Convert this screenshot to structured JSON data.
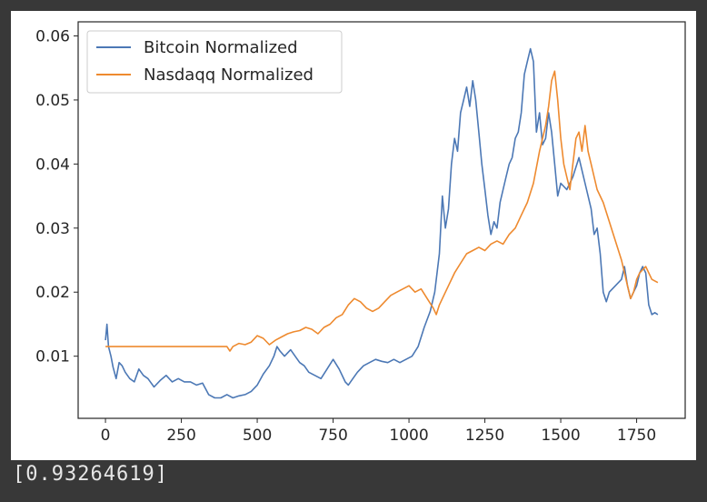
{
  "chart_data": {
    "type": "line",
    "title": "",
    "xlabel": "",
    "ylabel": "",
    "xlim": [
      -90,
      1910
    ],
    "ylim": [
      0.0003,
      0.0622
    ],
    "xticks": [
      0,
      250,
      500,
      750,
      1000,
      1250,
      1500,
      1750
    ],
    "yticks": [
      0.01,
      0.02,
      0.03,
      0.04,
      0.05,
      0.06
    ],
    "ytick_labels": [
      "0.01",
      "0.02",
      "0.03",
      "0.04",
      "0.05",
      "0.06"
    ],
    "grid": false,
    "legend_position": "upper-left",
    "series": [
      {
        "name": "Bitcoin Normalized",
        "color": "#4c78b5",
        "points": [
          [
            0,
            0.0125
          ],
          [
            5,
            0.015
          ],
          [
            10,
            0.0115
          ],
          [
            18,
            0.01
          ],
          [
            25,
            0.0083
          ],
          [
            35,
            0.0065
          ],
          [
            45,
            0.009
          ],
          [
            55,
            0.0085
          ],
          [
            65,
            0.0075
          ],
          [
            80,
            0.0065
          ],
          [
            95,
            0.006
          ],
          [
            110,
            0.008
          ],
          [
            125,
            0.007
          ],
          [
            140,
            0.0065
          ],
          [
            160,
            0.0052
          ],
          [
            180,
            0.0062
          ],
          [
            200,
            0.007
          ],
          [
            220,
            0.006
          ],
          [
            240,
            0.0065
          ],
          [
            260,
            0.006
          ],
          [
            280,
            0.006
          ],
          [
            300,
            0.0055
          ],
          [
            320,
            0.0058
          ],
          [
            340,
            0.004
          ],
          [
            360,
            0.0035
          ],
          [
            380,
            0.0035
          ],
          [
            400,
            0.004
          ],
          [
            420,
            0.0035
          ],
          [
            440,
            0.0038
          ],
          [
            460,
            0.004
          ],
          [
            480,
            0.0045
          ],
          [
            500,
            0.0055
          ],
          [
            520,
            0.0072
          ],
          [
            540,
            0.0085
          ],
          [
            555,
            0.01
          ],
          [
            565,
            0.0115
          ],
          [
            575,
            0.0108
          ],
          [
            590,
            0.01
          ],
          [
            610,
            0.011
          ],
          [
            625,
            0.01
          ],
          [
            640,
            0.009
          ],
          [
            655,
            0.0085
          ],
          [
            670,
            0.0075
          ],
          [
            690,
            0.007
          ],
          [
            710,
            0.0065
          ],
          [
            730,
            0.008
          ],
          [
            750,
            0.0095
          ],
          [
            770,
            0.008
          ],
          [
            790,
            0.006
          ],
          [
            800,
            0.0055
          ],
          [
            815,
            0.0065
          ],
          [
            830,
            0.0075
          ],
          [
            850,
            0.0085
          ],
          [
            870,
            0.009
          ],
          [
            890,
            0.0095
          ],
          [
            910,
            0.0092
          ],
          [
            930,
            0.009
          ],
          [
            950,
            0.0095
          ],
          [
            970,
            0.009
          ],
          [
            990,
            0.0095
          ],
          [
            1010,
            0.01
          ],
          [
            1030,
            0.0115
          ],
          [
            1050,
            0.0145
          ],
          [
            1070,
            0.017
          ],
          [
            1085,
            0.02
          ],
          [
            1100,
            0.026
          ],
          [
            1110,
            0.035
          ],
          [
            1120,
            0.03
          ],
          [
            1130,
            0.033
          ],
          [
            1140,
            0.04
          ],
          [
            1150,
            0.044
          ],
          [
            1160,
            0.042
          ],
          [
            1170,
            0.048
          ],
          [
            1180,
            0.05
          ],
          [
            1190,
            0.052
          ],
          [
            1200,
            0.049
          ],
          [
            1210,
            0.053
          ],
          [
            1220,
            0.05
          ],
          [
            1230,
            0.045
          ],
          [
            1240,
            0.04
          ],
          [
            1250,
            0.036
          ],
          [
            1260,
            0.032
          ],
          [
            1270,
            0.029
          ],
          [
            1280,
            0.031
          ],
          [
            1290,
            0.03
          ],
          [
            1300,
            0.034
          ],
          [
            1310,
            0.036
          ],
          [
            1320,
            0.038
          ],
          [
            1330,
            0.04
          ],
          [
            1340,
            0.041
          ],
          [
            1350,
            0.044
          ],
          [
            1360,
            0.045
          ],
          [
            1370,
            0.048
          ],
          [
            1380,
            0.054
          ],
          [
            1390,
            0.056
          ],
          [
            1400,
            0.058
          ],
          [
            1410,
            0.056
          ],
          [
            1420,
            0.045
          ],
          [
            1430,
            0.048
          ],
          [
            1440,
            0.043
          ],
          [
            1450,
            0.044
          ],
          [
            1460,
            0.048
          ],
          [
            1470,
            0.045
          ],
          [
            1480,
            0.04
          ],
          [
            1490,
            0.035
          ],
          [
            1500,
            0.037
          ],
          [
            1520,
            0.036
          ],
          [
            1540,
            0.038
          ],
          [
            1560,
            0.041
          ],
          [
            1580,
            0.037
          ],
          [
            1600,
            0.033
          ],
          [
            1610,
            0.029
          ],
          [
            1620,
            0.03
          ],
          [
            1630,
            0.026
          ],
          [
            1640,
            0.02
          ],
          [
            1650,
            0.0185
          ],
          [
            1660,
            0.02
          ],
          [
            1680,
            0.021
          ],
          [
            1700,
            0.022
          ],
          [
            1710,
            0.024
          ],
          [
            1720,
            0.021
          ],
          [
            1730,
            0.019
          ],
          [
            1740,
            0.02
          ],
          [
            1750,
            0.021
          ],
          [
            1760,
            0.023
          ],
          [
            1770,
            0.024
          ],
          [
            1780,
            0.023
          ],
          [
            1790,
            0.018
          ],
          [
            1800,
            0.0165
          ],
          [
            1810,
            0.0168
          ],
          [
            1820,
            0.0165
          ]
        ]
      },
      {
        "name": "Nasdaqq Normalized",
        "color": "#ee8a2f",
        "points": [
          [
            0,
            0.0115
          ],
          [
            50,
            0.0115
          ],
          [
            100,
            0.0115
          ],
          [
            150,
            0.0115
          ],
          [
            200,
            0.0115
          ],
          [
            250,
            0.0115
          ],
          [
            300,
            0.0115
          ],
          [
            350,
            0.0115
          ],
          [
            400,
            0.0115
          ],
          [
            410,
            0.0108
          ],
          [
            420,
            0.0115
          ],
          [
            440,
            0.012
          ],
          [
            460,
            0.0118
          ],
          [
            480,
            0.0122
          ],
          [
            500,
            0.0132
          ],
          [
            520,
            0.0128
          ],
          [
            540,
            0.0118
          ],
          [
            560,
            0.0125
          ],
          [
            580,
            0.013
          ],
          [
            600,
            0.0135
          ],
          [
            620,
            0.0138
          ],
          [
            640,
            0.014
          ],
          [
            660,
            0.0145
          ],
          [
            680,
            0.0142
          ],
          [
            700,
            0.0135
          ],
          [
            720,
            0.0145
          ],
          [
            740,
            0.015
          ],
          [
            760,
            0.016
          ],
          [
            780,
            0.0165
          ],
          [
            800,
            0.018
          ],
          [
            820,
            0.019
          ],
          [
            840,
            0.0185
          ],
          [
            860,
            0.0175
          ],
          [
            880,
            0.017
          ],
          [
            900,
            0.0175
          ],
          [
            920,
            0.0185
          ],
          [
            940,
            0.0195
          ],
          [
            960,
            0.02
          ],
          [
            980,
            0.0205
          ],
          [
            1000,
            0.021
          ],
          [
            1020,
            0.02
          ],
          [
            1040,
            0.0205
          ],
          [
            1060,
            0.019
          ],
          [
            1080,
            0.0175
          ],
          [
            1090,
            0.0165
          ],
          [
            1100,
            0.018
          ],
          [
            1110,
            0.019
          ],
          [
            1130,
            0.021
          ],
          [
            1150,
            0.023
          ],
          [
            1170,
            0.0245
          ],
          [
            1190,
            0.026
          ],
          [
            1210,
            0.0265
          ],
          [
            1230,
            0.027
          ],
          [
            1250,
            0.0265
          ],
          [
            1270,
            0.0275
          ],
          [
            1290,
            0.028
          ],
          [
            1310,
            0.0275
          ],
          [
            1330,
            0.029
          ],
          [
            1350,
            0.03
          ],
          [
            1370,
            0.032
          ],
          [
            1390,
            0.034
          ],
          [
            1410,
            0.037
          ],
          [
            1430,
            0.042
          ],
          [
            1450,
            0.046
          ],
          [
            1460,
            0.049
          ],
          [
            1470,
            0.053
          ],
          [
            1480,
            0.0545
          ],
          [
            1490,
            0.05
          ],
          [
            1500,
            0.044
          ],
          [
            1510,
            0.04
          ],
          [
            1520,
            0.038
          ],
          [
            1530,
            0.036
          ],
          [
            1540,
            0.04
          ],
          [
            1550,
            0.044
          ],
          [
            1560,
            0.045
          ],
          [
            1570,
            0.042
          ],
          [
            1580,
            0.046
          ],
          [
            1590,
            0.042
          ],
          [
            1600,
            0.04
          ],
          [
            1610,
            0.038
          ],
          [
            1620,
            0.036
          ],
          [
            1640,
            0.034
          ],
          [
            1660,
            0.031
          ],
          [
            1680,
            0.028
          ],
          [
            1700,
            0.025
          ],
          [
            1710,
            0.023
          ],
          [
            1720,
            0.021
          ],
          [
            1730,
            0.019
          ],
          [
            1740,
            0.02
          ],
          [
            1750,
            0.022
          ],
          [
            1760,
            0.023
          ],
          [
            1780,
            0.024
          ],
          [
            1800,
            0.022
          ],
          [
            1820,
            0.0215
          ]
        ]
      }
    ]
  },
  "console": {
    "output_text": "[0.93264619]"
  }
}
